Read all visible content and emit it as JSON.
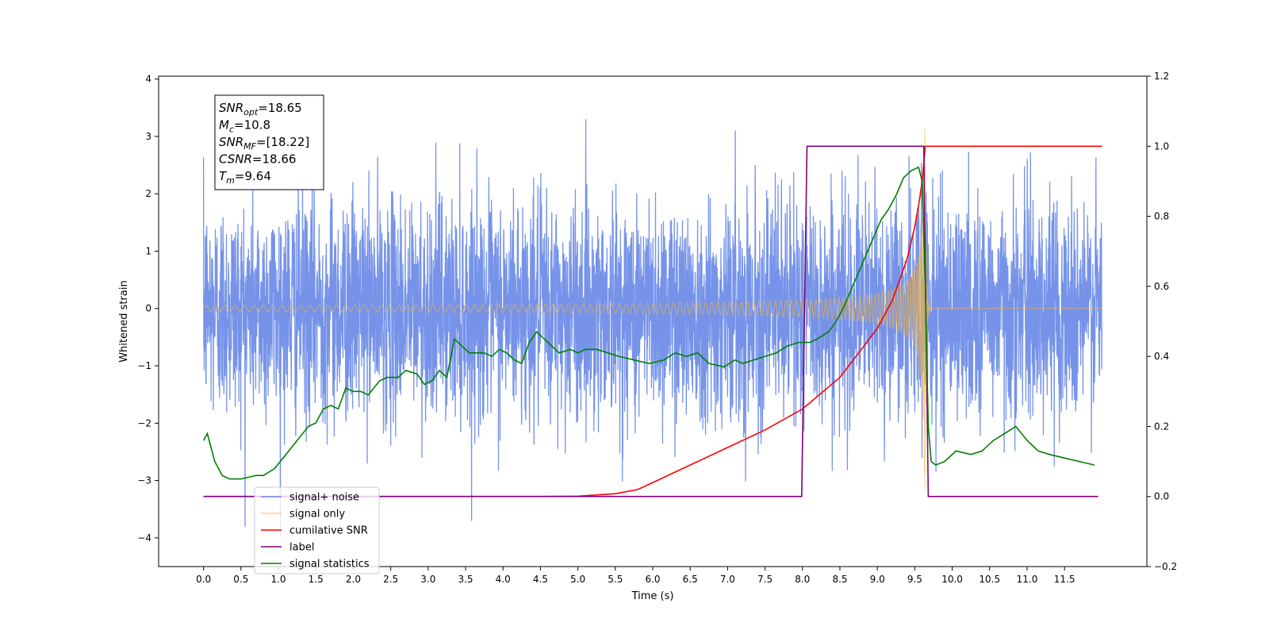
{
  "chart_data": {
    "type": "line",
    "xlabel": "Time (s)",
    "ylabel": "Whitened strain",
    "xlim": [
      -0.6,
      12.6
    ],
    "ylim": [
      -4.5,
      4.05
    ],
    "y2lim": [
      -0.2,
      1.2
    ],
    "xticks": [
      0.0,
      0.5,
      1.0,
      1.5,
      2.0,
      2.5,
      3.0,
      3.5,
      4.0,
      4.5,
      5.0,
      5.5,
      6.0,
      6.5,
      7.0,
      7.5,
      8.0,
      8.5,
      9.0,
      9.5,
      10.0,
      10.5,
      11.0,
      11.5
    ],
    "xtick_labels": [
      "0.0",
      "0.5",
      "1.0",
      "1.5",
      "2.0",
      "2.5",
      "3.0",
      "3.5",
      "4.0",
      "4.5",
      "5.0",
      "5.5",
      "6.0",
      "6.5",
      "7.0",
      "7.5",
      "8.0",
      "8.5",
      "9.0",
      "9.5",
      "10.0",
      "10.5",
      "11.0",
      "11.5"
    ],
    "yticks": [
      -4,
      -3,
      -2,
      -1,
      0,
      1,
      2,
      3,
      4
    ],
    "ytick_labels": [
      "−4",
      "−3",
      "−2",
      "−1",
      "0",
      "1",
      "2",
      "3",
      "4"
    ],
    "y2ticks": [
      -0.2,
      0.0,
      0.2,
      0.4,
      0.6,
      0.8,
      1.0,
      1.2
    ],
    "y2tick_labels": [
      "−0.2",
      "0.0",
      "0.2",
      "0.4",
      "0.6",
      "0.8",
      "1.0",
      "1.2"
    ],
    "legend_position": "lower-left",
    "annotation": {
      "lines": [
        {
          "sym": "SNR",
          "sub": "opt",
          "value": "=18.65"
        },
        {
          "sym": "M",
          "sub": "c",
          "value": "=10.8"
        },
        {
          "sym": "SNR",
          "sub": "MF",
          "value": "=[18.22]"
        },
        {
          "sym": "CSNR",
          "sub": "",
          "value": "=18.66"
        },
        {
          "sym": "T",
          "sub": "m",
          "value": "=9.64"
        }
      ]
    },
    "series": [
      {
        "name": "signal+ noise",
        "axis": "left",
        "color": "#4169e1",
        "kind": "noise",
        "sigma": 0.95,
        "x_range": [
          0.0,
          12.0
        ]
      },
      {
        "name": "signal only",
        "axis": "left",
        "color": "#ffb732",
        "kind": "chirp",
        "merger_time": 9.64,
        "peak_amplitude": 3.28,
        "x_range": [
          0.0,
          12.0
        ]
      },
      {
        "name": "cumilative SNR",
        "axis": "right",
        "color": "#ff0000",
        "x": [
          0.0,
          4.0,
          4.5,
          5.0,
          5.5,
          5.8,
          6.0,
          6.5,
          7.0,
          7.5,
          8.0,
          8.5,
          9.0,
          9.2,
          9.4,
          9.5,
          9.55,
          9.6,
          9.64,
          9.65,
          12.0
        ],
        "values": [
          0.0,
          0.0,
          0.0,
          0.001,
          0.008,
          0.02,
          0.04,
          0.09,
          0.14,
          0.19,
          0.25,
          0.34,
          0.48,
          0.56,
          0.68,
          0.77,
          0.83,
          0.9,
          1.0,
          1.0,
          1.0
        ]
      },
      {
        "name": "label",
        "axis": "right",
        "color": "#800080",
        "x": [
          0.0,
          7.99,
          8.06,
          9.62,
          9.68,
          11.95
        ],
        "values": [
          0.0,
          0.0,
          1.0,
          1.0,
          0.0,
          0.0
        ]
      },
      {
        "name": "signal statistics",
        "axis": "right",
        "color": "#008000",
        "x": [
          0.0,
          0.05,
          0.15,
          0.25,
          0.35,
          0.5,
          0.6,
          0.7,
          0.8,
          0.95,
          1.1,
          1.25,
          1.4,
          1.5,
          1.6,
          1.7,
          1.8,
          1.9,
          2.0,
          2.1,
          2.2,
          2.35,
          2.45,
          2.6,
          2.7,
          2.85,
          2.95,
          3.05,
          3.15,
          3.25,
          3.35,
          3.45,
          3.55,
          3.65,
          3.75,
          3.85,
          3.95,
          4.05,
          4.15,
          4.25,
          4.35,
          4.45,
          4.55,
          4.65,
          4.75,
          4.9,
          5.0,
          5.1,
          5.25,
          5.4,
          5.55,
          5.75,
          5.95,
          6.15,
          6.3,
          6.45,
          6.6,
          6.75,
          6.95,
          7.1,
          7.2,
          7.35,
          7.5,
          7.65,
          7.8,
          7.95,
          8.1,
          8.2,
          8.35,
          8.45,
          8.55,
          8.65,
          8.75,
          8.85,
          8.95,
          9.05,
          9.15,
          9.25,
          9.35,
          9.45,
          9.55,
          9.6,
          9.64,
          9.68,
          9.72,
          9.78,
          9.9,
          10.05,
          10.25,
          10.4,
          10.55,
          10.7,
          10.85,
          11.0,
          11.15,
          11.3,
          11.5,
          11.7,
          11.9
        ],
        "values": [
          0.16,
          0.18,
          0.1,
          0.06,
          0.05,
          0.05,
          0.055,
          0.06,
          0.06,
          0.08,
          0.12,
          0.16,
          0.2,
          0.21,
          0.25,
          0.26,
          0.25,
          0.31,
          0.3,
          0.3,
          0.29,
          0.33,
          0.34,
          0.34,
          0.36,
          0.35,
          0.32,
          0.33,
          0.36,
          0.34,
          0.45,
          0.43,
          0.41,
          0.41,
          0.41,
          0.4,
          0.42,
          0.41,
          0.39,
          0.38,
          0.44,
          0.47,
          0.45,
          0.43,
          0.41,
          0.42,
          0.41,
          0.42,
          0.42,
          0.41,
          0.4,
          0.39,
          0.38,
          0.39,
          0.41,
          0.4,
          0.41,
          0.38,
          0.37,
          0.39,
          0.38,
          0.39,
          0.4,
          0.41,
          0.43,
          0.44,
          0.44,
          0.45,
          0.47,
          0.5,
          0.54,
          0.59,
          0.64,
          0.69,
          0.74,
          0.79,
          0.82,
          0.86,
          0.91,
          0.93,
          0.94,
          0.9,
          0.6,
          0.2,
          0.1,
          0.09,
          0.1,
          0.13,
          0.12,
          0.13,
          0.16,
          0.18,
          0.2,
          0.16,
          0.13,
          0.12,
          0.11,
          0.1,
          0.09
        ]
      }
    ]
  }
}
